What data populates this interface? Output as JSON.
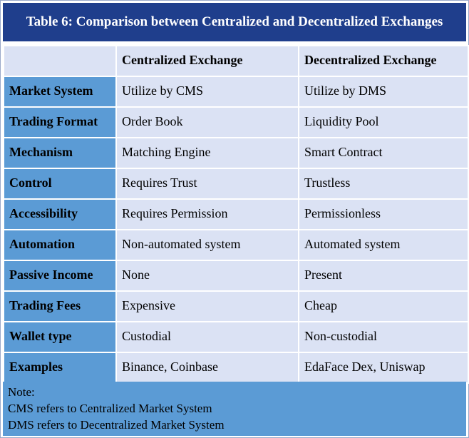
{
  "title": "Table 6: Comparison between Centralized and Decentralized Exchanges",
  "table": {
    "headers": [
      "",
      "Centralized Exchange",
      "Decentralized Exchange"
    ],
    "rows": [
      {
        "label": "Market System",
        "centralized": "Utilize by CMS",
        "decentralized": "Utilize by DMS"
      },
      {
        "label": "Trading Format",
        "centralized": "Order Book",
        "decentralized": "Liquidity Pool"
      },
      {
        "label": "Mechanism",
        "centralized": "Matching Engine",
        "decentralized": "Smart Contract"
      },
      {
        "label": "Control",
        "centralized": "Requires Trust",
        "decentralized": "Trustless"
      },
      {
        "label": "Accessibility",
        "centralized": "Requires Permission",
        "decentralized": "Permissionless"
      },
      {
        "label": "Automation",
        "centralized": "Non-automated system",
        "decentralized": "Automated system"
      },
      {
        "label": "Passive Income",
        "centralized": "None",
        "decentralized": "Present"
      },
      {
        "label": "Trading Fees",
        "centralized": "Expensive",
        "decentralized": "Cheap"
      },
      {
        "label": "Wallet type",
        "centralized": "Custodial",
        "decentralized": "Non-custodial"
      },
      {
        "label": "Examples",
        "centralized": "Binance, Coinbase",
        "decentralized": "EdaFace Dex, Uniswap"
      }
    ]
  },
  "note": {
    "heading": "Note:",
    "lines": [
      "CMS refers to Centralized Market System",
      "DMS refers to Decentralized Market System"
    ]
  },
  "colors": {
    "title_bar": "#1f3e8c",
    "row_label_fill": "#5b9bd5",
    "cell_fill": "#dbe2f4"
  }
}
